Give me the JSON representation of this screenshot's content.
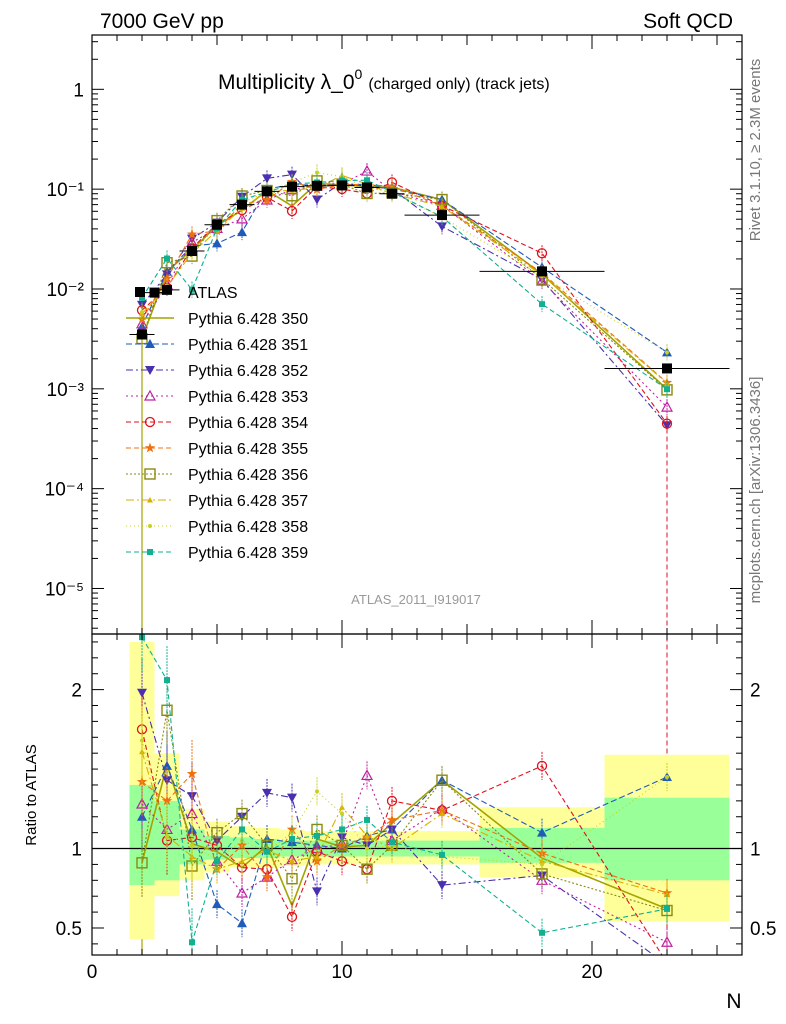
{
  "header": {
    "left": "7000 GeV pp",
    "right": "Soft QCD"
  },
  "side_labels": {
    "rivet": "Rivet 3.1.10, ≥ 2.3M events",
    "mcplots": "mcplots.cern.ch [arXiv:1306.3436]"
  },
  "chart_data": {
    "type": "scatter",
    "title_main": "Multiplicity λ_0",
    "title_sup": "0",
    "title_rest": "(charged only) (track jets)",
    "analysis_label": "ATLAS_2011_I919017",
    "xlabel": "N",
    "ylabel_bottom": "Ratio to ATLAS",
    "xlim": [
      0,
      26
    ],
    "ylim_top": [
      3.5e-06,
      3.5
    ],
    "ylim_bottom": [
      0.33,
      2.35
    ],
    "y_scale_top": "log",
    "y_tick_labels_top": [
      "10⁻⁵",
      "10⁻⁴",
      "10⁻³",
      "10⁻²",
      "10⁻¹",
      "1"
    ],
    "y_ticks_top": [
      1e-05,
      0.0001,
      0.001,
      0.01,
      0.1,
      1
    ],
    "x_ticks": [
      0,
      10,
      20
    ],
    "x_tick_labels": [
      "0",
      "10",
      "20"
    ],
    "y_ticks_bottom": [
      0.5,
      1,
      2
    ],
    "y_tick_labels_bottom": [
      "0.5",
      "1",
      "2"
    ],
    "legend_position": "center-left",
    "bands": [
      {
        "x": [
          1.5,
          2.5
        ],
        "y1": [
          0.43,
          2.3
        ],
        "y2": [
          0.77,
          1.4
        ]
      },
      {
        "x": [
          2.5,
          3.5
        ],
        "y1": [
          0.7,
          1.6
        ],
        "y2": [
          0.8,
          1.3
        ]
      },
      {
        "x": [
          3.5,
          4.5
        ],
        "y1": [
          0.8,
          1.25
        ],
        "y2": [
          0.9,
          1.12
        ]
      },
      {
        "x": [
          4.5,
          5.5
        ],
        "y1": [
          0.85,
          1.17
        ],
        "y2": [
          0.93,
          1.08
        ]
      },
      {
        "x": [
          5.5,
          6.5
        ],
        "y1": [
          0.88,
          1.14
        ],
        "y2": [
          0.94,
          1.07
        ]
      },
      {
        "x": [
          6.5,
          7.5
        ],
        "y1": [
          0.88,
          1.13
        ],
        "y2": [
          0.94,
          1.06
        ]
      },
      {
        "x": [
          7.5,
          8.5
        ],
        "y1": [
          0.89,
          1.12
        ],
        "y2": [
          0.95,
          1.05
        ]
      },
      {
        "x": [
          8.5,
          9.5
        ],
        "y1": [
          0.9,
          1.11
        ],
        "y2": [
          0.95,
          1.05
        ]
      },
      {
        "x": [
          9.5,
          10.5
        ],
        "y1": [
          0.9,
          1.11
        ],
        "y2": [
          0.95,
          1.05
        ]
      },
      {
        "x": [
          10.5,
          11.5
        ],
        "y1": [
          0.9,
          1.11
        ],
        "y2": [
          0.95,
          1.05
        ]
      },
      {
        "x": [
          11.5,
          12.5
        ],
        "y1": [
          0.9,
          1.11
        ],
        "y2": [
          0.95,
          1.05
        ]
      },
      {
        "x": [
          12.5,
          15.5
        ],
        "y1": [
          0.9,
          1.11
        ],
        "y2": [
          0.95,
          1.05
        ]
      },
      {
        "x": [
          15.5,
          20.5
        ],
        "y1": [
          0.82,
          1.26
        ],
        "y2": [
          0.91,
          1.13
        ]
      },
      {
        "x": [
          20.5,
          25.5
        ],
        "y1": [
          0.54,
          1.59
        ],
        "y2": [
          0.8,
          1.32
        ]
      }
    ],
    "data": {
      "name": "ATLAS",
      "x": [
        2,
        2.5,
        3,
        4,
        5,
        6,
        7,
        8,
        9,
        10,
        11,
        12,
        14,
        18,
        23
      ],
      "y": [
        0.0035,
        0.0092,
        0.0098,
        0.024,
        0.044,
        0.07,
        0.095,
        0.106,
        0.108,
        0.109,
        0.104,
        0.09,
        0.055,
        0.015,
        0.0016
      ],
      "xerr": [
        0.5,
        0.5,
        0.5,
        0.5,
        0.5,
        0.5,
        0.5,
        0.5,
        0.5,
        0.5,
        0.5,
        0.5,
        1.5,
        2.5,
        2.5
      ]
    },
    "series": [
      {
        "name": "Pythia 6.428 350",
        "color": "#a3a300",
        "marker": "none",
        "dash": "",
        "x": [
          2,
          3,
          4,
          5,
          6,
          7,
          8,
          9,
          10,
          11,
          12,
          14,
          18,
          23
        ],
        "y": [
          0.91,
          1.53,
          1.03,
          0.98,
          0.88,
          1.02,
          0.64,
          1.06,
          1.01,
          1.02,
          1.16,
          1.43,
          0.94,
          0.62
        ]
      },
      {
        "name": "Pythia 6.428 351",
        "color": "#1f5bb8",
        "marker": "triangle-up",
        "dash": "6,3",
        "x": [
          2,
          3,
          4,
          5,
          6,
          7,
          8,
          9,
          10,
          11,
          12,
          14,
          18,
          23
        ],
        "y": [
          1.2,
          1.52,
          1.12,
          0.65,
          0.53,
          1.06,
          1.04,
          1.02,
          1.0,
          1.08,
          1.12,
          1.43,
          1.1,
          1.45
        ]
      },
      {
        "name": "Pythia 6.428 352",
        "color": "#4a30b0",
        "marker": "triangle-down",
        "dash": "7,3,2,3",
        "x": [
          2,
          3,
          4,
          5,
          6,
          7,
          8,
          9,
          10,
          11,
          12,
          14,
          18,
          23
        ],
        "y": [
          1.98,
          1.43,
          1.33,
          1.05,
          1.2,
          1.35,
          1.32,
          0.73,
          1.07,
          1.02,
          1.12,
          0.77,
          0.83,
          0.27
        ]
      },
      {
        "name": "Pythia 6.428 353",
        "color": "#c020a0",
        "marker": "triangle-up-open",
        "dash": "2,3",
        "x": [
          2,
          3,
          4,
          5,
          6,
          7,
          8,
          9,
          10,
          11,
          12,
          14,
          18,
          23
        ],
        "y": [
          1.28,
          1.12,
          1.22,
          0.92,
          0.72,
          0.82,
          0.93,
          1.0,
          1.03,
          1.46,
          1.05,
          1.25,
          0.8,
          0.41
        ]
      },
      {
        "name": "Pythia 6.428 354",
        "color": "#e0101c",
        "marker": "circle-open",
        "dash": "5,3",
        "x": [
          2,
          3,
          4,
          5,
          6,
          7,
          8,
          9,
          10,
          11,
          12,
          14,
          18,
          23
        ],
        "y": [
          1.75,
          1.05,
          1.07,
          1.02,
          0.88,
          0.87,
          0.57,
          0.98,
          0.92,
          0.87,
          1.3,
          1.24,
          1.52,
          0.28
        ]
      },
      {
        "name": "Pythia 6.428 355",
        "color": "#f07010",
        "marker": "star",
        "dash": "5,3",
        "x": [
          2,
          3,
          4,
          5,
          6,
          7,
          8,
          9,
          10,
          11,
          12,
          14,
          18,
          23
        ],
        "y": [
          1.42,
          1.3,
          1.47,
          0.87,
          1.02,
          0.82,
          1.12,
          0.92,
          1.02,
          1.07,
          1.18,
          1.24,
          0.97,
          0.72
        ]
      },
      {
        "name": "Pythia 6.428 356",
        "color": "#8a8a10",
        "marker": "square-open",
        "dash": "2,2",
        "x": [
          2,
          3,
          4,
          5,
          6,
          7,
          8,
          9,
          10,
          11,
          12,
          14,
          18,
          23
        ],
        "y": [
          0.91,
          1.87,
          0.89,
          1.1,
          1.22,
          1.02,
          0.81,
          1.12,
          1.02,
          0.87,
          1.02,
          1.43,
          0.84,
          0.61
        ]
      },
      {
        "name": "Pythia 6.428 357",
        "color": "#d8b000",
        "marker": "tri-small",
        "dash": "8,3,2,3",
        "x": [
          2,
          3,
          4,
          5,
          6,
          7,
          8,
          9,
          10,
          11,
          12,
          14,
          18,
          23
        ],
        "y": [
          1.61,
          1.08,
          0.95,
          0.87,
          0.92,
          0.99,
          0.92,
          0.95,
          1.26,
          1.08,
          1.0,
          1.22,
          0.92,
          0.71
        ]
      },
      {
        "name": "Pythia 6.428 358",
        "color": "#c8d020",
        "marker": "dot",
        "dash": "1,3",
        "x": [
          2,
          3,
          4,
          5,
          6,
          7,
          8,
          9,
          10,
          11,
          12,
          14,
          18,
          23
        ],
        "y": [
          1.68,
          1.08,
          1.02,
          0.93,
          1.05,
          0.98,
          1.1,
          1.36,
          1.22,
          1.0,
          1.02,
          0.95,
          0.9,
          1.45
        ]
      },
      {
        "name": "Pythia 6.428 359",
        "color": "#10b090",
        "marker": "square-small",
        "dash": "5,3",
        "x": [
          2,
          3,
          4,
          5,
          6,
          7,
          8,
          9,
          10,
          11,
          12,
          14,
          18,
          23
        ],
        "y": [
          2.33,
          2.06,
          0.41,
          0.92,
          1.12,
          0.98,
          1.06,
          1.08,
          1.12,
          1.18,
          1.04,
          0.96,
          0.47,
          0.62
        ]
      }
    ]
  }
}
